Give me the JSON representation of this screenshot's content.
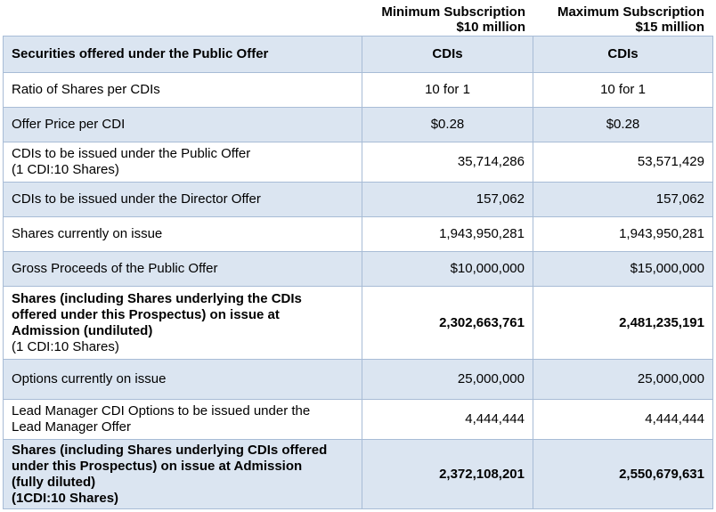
{
  "header": {
    "min": {
      "line1": "Minimum Subscription",
      "line2": "$10 million"
    },
    "max": {
      "line1": "Maximum Subscription",
      "line2": "$15 million"
    }
  },
  "rows": [
    {
      "label": "Securities offered under the Public Offer",
      "min": "CDIs",
      "max": "CDIs"
    },
    {
      "label": "Ratio of Shares per CDIs",
      "min": "10 for 1",
      "max": "10 for 1"
    },
    {
      "label": "Offer Price per CDI",
      "min": "$0.28",
      "max": "$0.28"
    },
    {
      "label": "CDIs to be issued under the Public Offer",
      "sub": "(1 CDI:10 Shares)",
      "min": "35,714,286",
      "max": "53,571,429"
    },
    {
      "label": "CDIs to be issued under the Director Offer",
      "min": "157,062",
      "max": "157,062"
    },
    {
      "label": "Shares currently on issue",
      "min": "1,943,950,281",
      "max": "1,943,950,281"
    },
    {
      "label": "Gross Proceeds of the Public Offer",
      "min": "$10,000,000",
      "max": "$15,000,000"
    },
    {
      "label_lines": [
        "Shares (including Shares underlying the CDIs",
        "offered under this Prospectus) on issue at",
        "Admission (undiluted)"
      ],
      "sub": "(1 CDI:10 Shares)",
      "min": "2,302,663,761",
      "max": "2,481,235,191"
    },
    {
      "label": "Options currently on issue",
      "min": "25,000,000",
      "max": "25,000,000"
    },
    {
      "label_lines": [
        "Lead Manager CDI Options to be issued under the",
        "Lead Manager Offer"
      ],
      "min": "4,444,444",
      "max": "4,444,444"
    },
    {
      "label_lines": [
        "Shares (including Shares underlying CDIs offered",
        "under this Prospectus) on issue at Admission",
        "(fully diluted)",
        "(1CDI:10 Shares)"
      ],
      "min": "2,372,108,201",
      "max": "2,550,679,631"
    }
  ]
}
